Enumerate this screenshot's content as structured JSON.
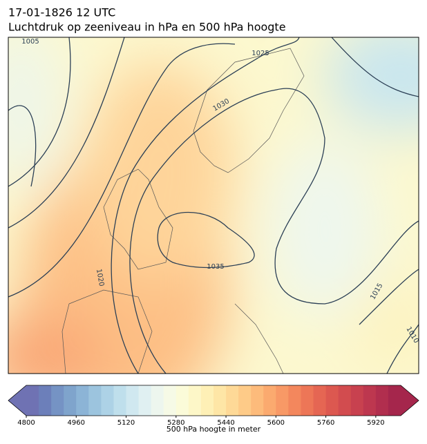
{
  "title": "17-01-1826 12 UTC",
  "subtitle": "Luchtdruk op zeeniveau in hPa en 500 hPa hoogte",
  "contour_labels": [
    "1005",
    "1025",
    "1030",
    "1035",
    "1020",
    "1015",
    "1010"
  ],
  "colorbar": {
    "label": "500 hPa hoogte in meter",
    "lim": [
      4800,
      6000
    ],
    "ticks": [
      4800,
      4960,
      5120,
      5280,
      5440,
      5600,
      5760,
      5920
    ],
    "colors": [
      "#6f72b3",
      "#6c7fba",
      "#7593c4",
      "#7fa4cc",
      "#8cb4d6",
      "#9cc4de",
      "#add2e6",
      "#bfdfec",
      "#d0e8f0",
      "#e0f0f2",
      "#edf6ee",
      "#f6fae6",
      "#fbfbd9",
      "#fdf7c8",
      "#fef0b6",
      "#fee6a6",
      "#fed997",
      "#fecb88",
      "#fdbb7b",
      "#fbaa6f",
      "#f89966",
      "#f3875d",
      "#ed7657",
      "#e56653",
      "#dc5850",
      "#d24c4f",
      "#c8414f",
      "#bd374f",
      "#b12e4e",
      "#a5264c"
    ]
  }
}
